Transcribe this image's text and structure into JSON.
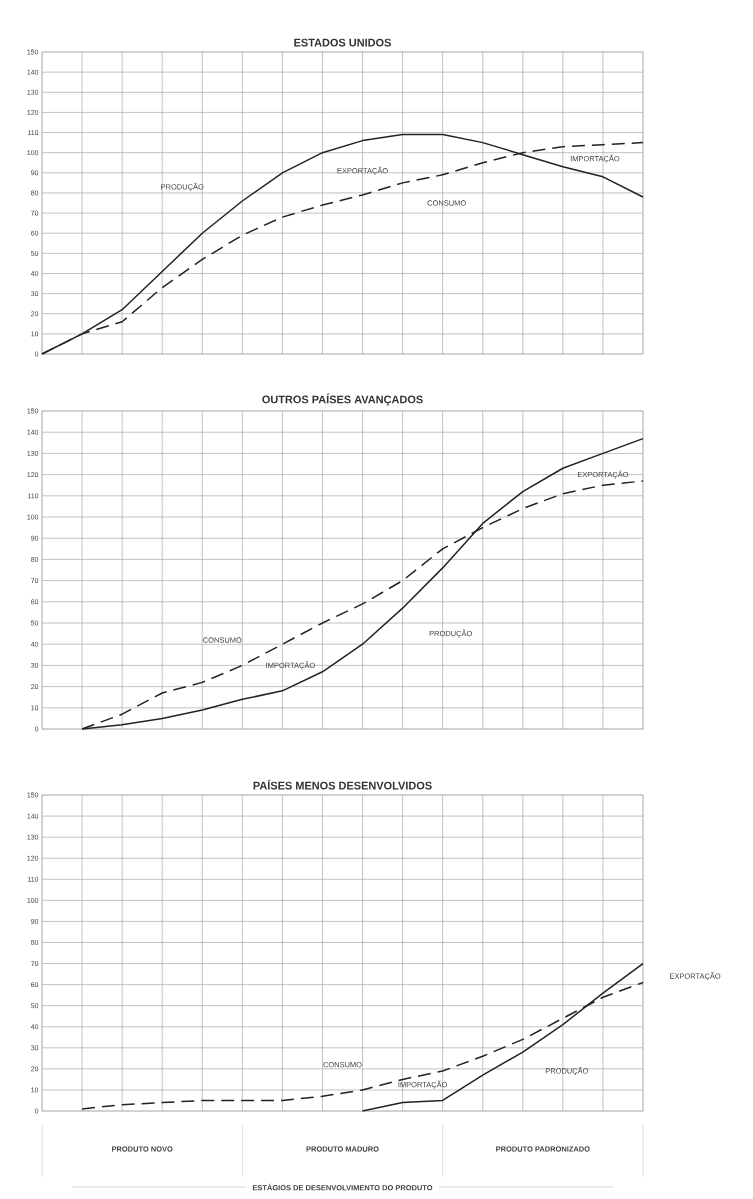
{
  "chart_data": [
    {
      "type": "line",
      "title": "ESTADOS UNIDOS",
      "ylim": [
        0,
        150
      ],
      "categories": [
        null,
        null,
        null,
        null,
        null,
        null,
        null,
        null,
        null,
        null,
        null,
        null,
        null,
        null,
        null,
        null
      ],
      "yticks": [
        0,
        10,
        20,
        30,
        40,
        50,
        60,
        70,
        80,
        90,
        100,
        110,
        120,
        130,
        140,
        150
      ],
      "grid": true,
      "tick_labels": "y",
      "series": [
        {
          "color": "#222222",
          "line_style": "solid",
          "values": [
            0,
            10,
            22,
            41,
            60,
            76,
            90,
            100,
            106,
            109,
            109,
            105,
            99,
            93,
            88,
            78
          ]
        },
        {
          "color": "#222222",
          "line_style": "dashed",
          "values": [
            0,
            10,
            16,
            33,
            47,
            59,
            68,
            74,
            79,
            85,
            89,
            95,
            100,
            103,
            104,
            105
          ]
        }
      ],
      "annotations": [
        "PRODUÇÃO",
        "CONSUMO",
        "EXPORTAÇÃO",
        "IMPORTAÇÃO"
      ]
    },
    {
      "type": "line",
      "title": "OUTROS PAÍSES AVANÇADOS",
      "ylim": [
        0,
        150
      ],
      "categories": [
        null,
        null,
        null,
        null,
        null,
        null,
        null,
        null,
        null,
        null,
        null,
        null,
        null,
        null,
        null,
        null
      ],
      "yticks": [
        0,
        10,
        20,
        30,
        40,
        50,
        60,
        70,
        80,
        90,
        100,
        110,
        120,
        130,
        140,
        150
      ],
      "grid": true,
      "tick_labels": "y",
      "series": [
        {
          "color": "#222222",
          "line_style": "solid",
          "values": [
            null,
            0,
            2,
            5,
            9,
            14,
            18,
            27,
            40,
            57,
            76,
            97,
            112,
            123,
            130,
            137
          ]
        },
        {
          "color": "#222222",
          "line_style": "dashed",
          "values": [
            null,
            0,
            7,
            17,
            22,
            30,
            40,
            50,
            59,
            70,
            85,
            95,
            104,
            111,
            115,
            117
          ]
        }
      ],
      "annotations": [
        "CONSUMO",
        "IMPORTAÇÃO",
        "PRODUÇÃO",
        "EXPORTAÇÃO"
      ]
    },
    {
      "type": "line",
      "title": "PAÍSES MENOS DESENVOLVIDOS",
      "xlabel": "ESTÁGIOS DE DESENVOLVIMENTO DO PRODUTO",
      "ylim": [
        0,
        150
      ],
      "categories": [
        null,
        null,
        null,
        null,
        null,
        null,
        null,
        null,
        null,
        null,
        null,
        null,
        null,
        null,
        null,
        null
      ],
      "yticks": [
        0,
        10,
        20,
        30,
        40,
        50,
        60,
        70,
        80,
        90,
        100,
        110,
        120,
        130,
        140,
        150
      ],
      "grid": true,
      "tick_labels": "y",
      "series": [
        {
          "color": "#222222",
          "line_style": "solid",
          "values": [
            null,
            null,
            null,
            null,
            null,
            null,
            null,
            null,
            0,
            4,
            5,
            17,
            28,
            41,
            56,
            70
          ]
        },
        {
          "color": "#222222",
          "line_style": "dashed",
          "values": [
            null,
            1,
            3,
            4,
            5,
            5,
            5,
            7,
            10,
            15,
            19,
            26,
            34,
            44,
            54,
            61
          ]
        }
      ],
      "annotations": [
        "CONSUMO",
        "IMPORTAÇÃO",
        "PRODUÇÃO",
        "EXPORTAÇÃO",
        "PRODUTO NOVO",
        "PRODUTO MADURO",
        "PRODUTO PADRONIZADO"
      ]
    }
  ]
}
